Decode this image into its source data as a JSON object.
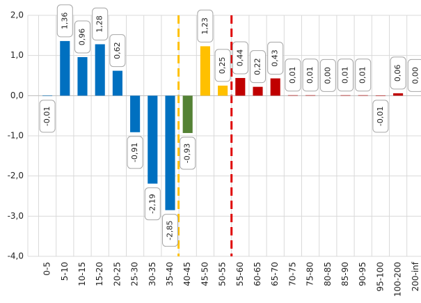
{
  "chart_data": {
    "type": "bar",
    "categories": [
      "0-5",
      "5-10",
      "10-15",
      "15-20",
      "20-25",
      "25-30",
      "30-35",
      "35-40",
      "40-45",
      "45-50",
      "50-55",
      "55-60",
      "60-65",
      "65-70",
      "70-75",
      "75-80",
      "80-85",
      "85-90",
      "90-95",
      "95-100",
      "100-200",
      "200-inf"
    ],
    "values": [
      -0.01,
      1.36,
      0.96,
      1.28,
      0.62,
      -0.91,
      -2.19,
      -2.85,
      -0.93,
      1.23,
      0.25,
      0.44,
      0.22,
      0.43,
      0.01,
      0.01,
      0.0,
      0.01,
      0.01,
      -0.01,
      0.06,
      0.0
    ],
    "value_labels": [
      "-0,01",
      "1,36",
      "0,96",
      "1,28",
      "0,62",
      "-0,91",
      "-2,19",
      "-2,85",
      "-0,93",
      "1,23",
      "0,25",
      "0,44",
      "0,22",
      "0,43",
      "0,01",
      "0,01",
      "0,00",
      "0,01",
      "0,01",
      "-0,01",
      "0,06",
      "0,00"
    ],
    "colors": [
      "#0070c0",
      "#0070c0",
      "#0070c0",
      "#0070c0",
      "#0070c0",
      "#0070c0",
      "#0070c0",
      "#0070c0",
      "#548235",
      "#ffc000",
      "#ffc000",
      "#c00000",
      "#c00000",
      "#c00000",
      "#c00000",
      "#c00000",
      "#c00000",
      "#c00000",
      "#c00000",
      "#c00000",
      "#c00000",
      "#c00000"
    ],
    "ylim": [
      -4,
      2
    ],
    "yticks": [
      {
        "value": -4,
        "label": "-4,0"
      },
      {
        "value": -3,
        "label": "-3,0"
      },
      {
        "value": -2,
        "label": "-2,0"
      },
      {
        "value": -1,
        "label": "-1,0"
      },
      {
        "value": 0,
        "label": "0,0"
      },
      {
        "value": 1,
        "label": "1,0"
      },
      {
        "value": 2,
        "label": "2,0"
      }
    ],
    "grid": true
  }
}
